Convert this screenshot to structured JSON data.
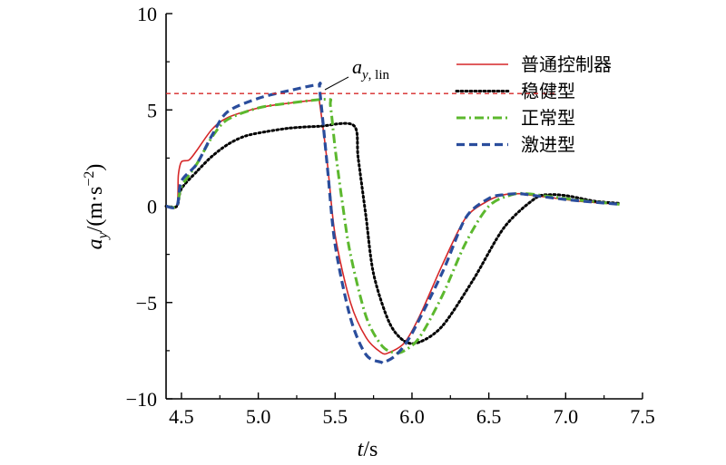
{
  "chart_data": {
    "type": "line",
    "title": "",
    "xlabel": "t/s",
    "ylabel": "ay/(m·s−2)",
    "xlim": [
      4.4,
      7.5
    ],
    "ylim": [
      -10,
      10
    ],
    "x_ticks": [
      4.5,
      5.0,
      5.5,
      6.0,
      6.5,
      7.0,
      7.5
    ],
    "x_tick_labels": [
      "4.5",
      "5.0",
      "5.5",
      "6.0",
      "6.5",
      "7.0",
      "7.5"
    ],
    "y_ticks": [
      -10,
      -5,
      0,
      5,
      10
    ],
    "y_tick_labels": [
      "−10",
      "−5",
      "0",
      "5",
      "10"
    ],
    "grid": false,
    "legend_position": "top-right",
    "reference_line": {
      "label": "ay, lin",
      "y": 5.85,
      "color": "#d62728"
    },
    "series": [
      {
        "name": "普通控制器",
        "color": "#d62728",
        "style": "solid",
        "x": [
          4.4,
          4.47,
          4.48,
          4.5,
          4.55,
          4.6,
          4.7,
          4.8,
          5.0,
          5.2,
          5.39,
          5.4,
          5.45,
          5.5,
          5.6,
          5.7,
          5.8,
          5.85,
          5.95,
          6.05,
          6.2,
          6.35,
          6.5,
          6.6,
          6.7,
          6.75,
          6.9,
          7.1,
          7.35
        ],
        "y": [
          0,
          0,
          1.6,
          2.3,
          2.4,
          2.9,
          4.0,
          4.6,
          5.1,
          5.35,
          5.5,
          5.3,
          2.2,
          -1.5,
          -5.0,
          -6.8,
          -7.6,
          -7.6,
          -7.1,
          -5.7,
          -3.0,
          -0.6,
          0.3,
          0.6,
          0.65,
          0.6,
          0.45,
          0.25,
          0.1
        ]
      },
      {
        "name": "稳健型",
        "color": "#000000",
        "style": "dotted",
        "x": [
          4.4,
          4.47,
          4.5,
          4.6,
          4.7,
          4.8,
          4.9,
          5.0,
          5.2,
          5.4,
          5.62,
          5.65,
          5.7,
          5.75,
          5.85,
          5.95,
          6.05,
          6.2,
          6.4,
          6.6,
          6.8,
          6.9,
          7.0,
          7.1,
          7.2,
          7.35
        ],
        "y": [
          0,
          0,
          0.9,
          1.8,
          2.6,
          3.2,
          3.6,
          3.8,
          4.05,
          4.15,
          4.2,
          2.5,
          -0.5,
          -3.5,
          -6.0,
          -7.0,
          -7.05,
          -6.2,
          -3.8,
          -1.1,
          0.4,
          0.6,
          0.55,
          0.4,
          0.25,
          0.15
        ]
      },
      {
        "name": "正常型",
        "color": "#5cb82e",
        "style": "dashdot",
        "x": [
          4.4,
          4.47,
          4.5,
          4.6,
          4.7,
          4.8,
          5.0,
          5.2,
          5.45,
          5.47,
          5.5,
          5.55,
          5.6,
          5.7,
          5.8,
          5.88,
          5.95,
          6.05,
          6.2,
          6.35,
          6.5,
          6.65,
          6.75,
          6.9,
          7.1,
          7.35
        ],
        "y": [
          0,
          0,
          1.0,
          2.2,
          3.6,
          4.5,
          5.1,
          5.35,
          5.55,
          5.2,
          3.0,
          0.0,
          -2.5,
          -5.7,
          -7.2,
          -7.6,
          -7.5,
          -6.8,
          -4.6,
          -1.9,
          0.0,
          0.6,
          0.65,
          0.5,
          0.3,
          0.1
        ]
      },
      {
        "name": "激进型",
        "color": "#2a4d9c",
        "style": "dashed",
        "x": [
          4.4,
          4.47,
          4.5,
          4.6,
          4.7,
          4.8,
          5.0,
          5.2,
          5.39,
          5.4,
          5.45,
          5.5,
          5.6,
          5.7,
          5.8,
          5.82,
          5.9,
          6.0,
          6.2,
          6.35,
          6.5,
          6.6,
          6.7,
          6.8,
          7.0,
          7.2,
          7.35
        ],
        "y": [
          0,
          0,
          1.3,
          2.2,
          3.7,
          4.9,
          5.6,
          6.0,
          6.3,
          6.0,
          2.0,
          -2.0,
          -5.8,
          -7.7,
          -8.1,
          -8.1,
          -7.7,
          -6.6,
          -3.4,
          -0.6,
          0.4,
          0.6,
          0.65,
          0.55,
          0.35,
          0.2,
          0.1
        ]
      }
    ]
  }
}
